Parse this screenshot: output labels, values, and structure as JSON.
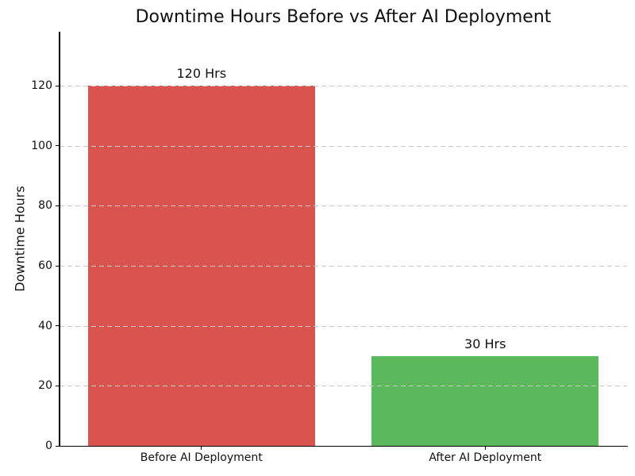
{
  "chart_data": {
    "type": "bar",
    "title": "Downtime Hours Before vs After AI Deployment",
    "categories": [
      "Before AI Deployment",
      "After AI Deployment"
    ],
    "values": [
      120,
      30
    ],
    "bar_labels": [
      "120 Hrs",
      "30 Hrs"
    ],
    "bar_colors": [
      "#d9534f",
      "#5cb85c"
    ],
    "xlabel": "",
    "ylabel": "Downtime Hours",
    "yticks": [
      0,
      20,
      40,
      60,
      80,
      100,
      120
    ],
    "ylim": [
      0,
      138
    ],
    "grid": {
      "axis": "y",
      "style": "dashed",
      "color": "#c8c8c8"
    },
    "legend": "none",
    "background_color": "#ffffff",
    "text_color": "#111111",
    "axis_color": "#000000"
  }
}
